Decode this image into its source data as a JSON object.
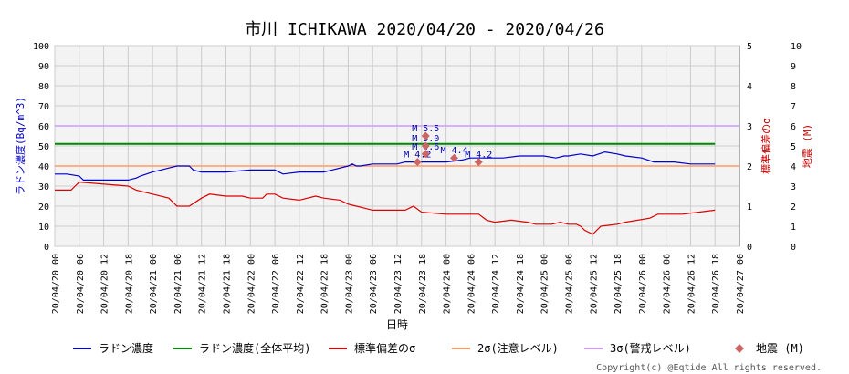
{
  "page": {
    "title": "市川 ICHIKAWA 2020/04/20 - 2020/04/26",
    "copyright": "Copyright(c) @Eqtide All rights reserved."
  },
  "chart_data": {
    "type": "line",
    "title": "市川 ICHIKAWA 2020/04/20 - 2020/04/26",
    "xlabel": "日時",
    "ylabel_left": "ラドン濃度(Bq/m^3)",
    "ylabel_right1": "標準偏差のσ",
    "ylabel_right2": "地震 (M)",
    "xlim": [
      "2020-04-20T00:00",
      "2020-04-27T00:00"
    ],
    "ylim_left": [
      0,
      100
    ],
    "ylim_right1": [
      0,
      5
    ],
    "ylim_right2": [
      0,
      10
    ],
    "yticks_left": [
      "0",
      "10",
      "20",
      "30",
      "40",
      "50",
      "60",
      "70",
      "80",
      "90",
      "100"
    ],
    "yticks_right1": [
      "0",
      "1",
      "2",
      "3",
      "4",
      "5"
    ],
    "yticks_right2": [
      "0",
      "1",
      "2",
      "3",
      "4",
      "5",
      "6",
      "7",
      "8",
      "9",
      "10"
    ],
    "xtick_labels": [
      "20/04/20 00",
      "20/04/20 06",
      "20/04/20 12",
      "20/04/20 18",
      "20/04/21 00",
      "20/04/21 06",
      "20/04/21 12",
      "20/04/21 18",
      "20/04/22 00",
      "20/04/22 06",
      "20/04/22 12",
      "20/04/22 18",
      "20/04/23 00",
      "20/04/23 06",
      "20/04/23 12",
      "20/04/23 18",
      "20/04/24 00",
      "20/04/24 06",
      "20/04/24 12",
      "20/04/24 18",
      "20/04/25 00",
      "20/04/25 06",
      "20/04/25 12",
      "20/04/25 18",
      "20/04/26 00",
      "20/04/26 06",
      "20/04/26 12",
      "20/04/26 18",
      "20/04/27 00"
    ],
    "grid": true,
    "legend_position": "bottom",
    "series": [
      {
        "name": "ラドン濃度",
        "color": "#0000cc",
        "axis": "left",
        "x_hours": [
          0,
          3,
          6,
          7,
          12,
          18,
          20,
          21,
          24,
          26,
          28,
          30,
          33,
          34,
          36,
          42,
          48,
          50,
          54,
          56,
          60,
          63,
          66,
          68,
          72,
          73,
          74,
          75,
          78,
          84,
          86,
          90,
          96,
          100,
          102,
          108,
          110,
          114,
          117,
          120,
          123,
          125,
          126,
          129,
          132,
          135,
          138,
          140,
          144,
          147,
          150,
          152,
          156,
          160,
          162
        ],
        "values": [
          36,
          36,
          35,
          33,
          33,
          33,
          34,
          35,
          37,
          38,
          39,
          40,
          40,
          38,
          37,
          37,
          38,
          38,
          38,
          36,
          37,
          37,
          37,
          38,
          40,
          41,
          40,
          40,
          41,
          41,
          42,
          42,
          42,
          43,
          44,
          44,
          44,
          45,
          45,
          45,
          44,
          45,
          45,
          46,
          45,
          47,
          46,
          45,
          44,
          42,
          42,
          42,
          41,
          41,
          41
        ]
      },
      {
        "name": "ラドン濃度(全体平均)",
        "color": "#008800",
        "axis": "left",
        "x_hours": [
          0,
          162
        ],
        "values": [
          51,
          51
        ]
      },
      {
        "name": "標準偏差のσ",
        "color": "#dd0000",
        "axis": "right1",
        "x_hours": [
          0,
          4,
          5,
          6,
          18,
          20,
          24,
          28,
          30,
          33,
          36,
          38,
          42,
          46,
          48,
          51,
          52,
          54,
          56,
          60,
          64,
          66,
          70,
          72,
          74,
          76,
          78,
          80,
          86,
          88,
          90,
          96,
          98,
          104,
          106,
          108,
          112,
          116,
          118,
          122,
          124,
          126,
          128,
          129,
          130,
          132,
          134,
          138,
          140,
          146,
          148,
          150,
          154,
          162
        ],
        "values": [
          1.4,
          1.4,
          1.5,
          1.6,
          1.5,
          1.4,
          1.3,
          1.2,
          1.0,
          1.0,
          1.2,
          1.3,
          1.25,
          1.25,
          1.2,
          1.2,
          1.3,
          1.3,
          1.2,
          1.15,
          1.25,
          1.2,
          1.15,
          1.05,
          1.0,
          0.95,
          0.9,
          0.9,
          0.9,
          1.0,
          0.85,
          0.8,
          0.8,
          0.8,
          0.65,
          0.6,
          0.65,
          0.6,
          0.55,
          0.55,
          0.6,
          0.55,
          0.55,
          0.5,
          0.4,
          0.3,
          0.5,
          0.55,
          0.6,
          0.7,
          0.8,
          0.8,
          0.8,
          0.9
        ]
      }
    ],
    "reference_lines": [
      {
        "name": "2σ(注意レベル)",
        "color": "#ff9966",
        "axis": "right1",
        "value": 2.0
      },
      {
        "name": "3σ(警戒レベル)",
        "color": "#cc99ff",
        "axis": "right1",
        "value": 3.0
      }
    ],
    "earthquakes": {
      "name": "地震 (M)",
      "color": "#cc6666",
      "axis": "right2",
      "points": [
        {
          "x_hours": 89,
          "value": 4.2,
          "label": "M 4.2"
        },
        {
          "x_hours": 91,
          "value": 4.6,
          "label": "M 4.6"
        },
        {
          "x_hours": 91,
          "value": 5.0,
          "label": "M 5.0"
        },
        {
          "x_hours": 91,
          "value": 5.5,
          "label": "M 5.5"
        },
        {
          "x_hours": 98,
          "value": 4.4,
          "label": "M 4.4"
        },
        {
          "x_hours": 104,
          "value": 4.2,
          "label": "M 4.2"
        }
      ]
    },
    "legend": [
      {
        "label": "ラドン濃度",
        "kind": "line",
        "color": "#0000cc"
      },
      {
        "label": "ラドン濃度(全体平均)",
        "kind": "line",
        "color": "#008800"
      },
      {
        "label": "標準偏差のσ",
        "kind": "line",
        "color": "#dd0000"
      },
      {
        "label": "2σ(注意レベル)",
        "kind": "line",
        "color": "#ff9966"
      },
      {
        "label": "3σ(警戒レベル)",
        "kind": "line",
        "color": "#cc99ff"
      },
      {
        "label": "地震 (M)",
        "kind": "marker",
        "color": "#cc6666"
      }
    ]
  }
}
